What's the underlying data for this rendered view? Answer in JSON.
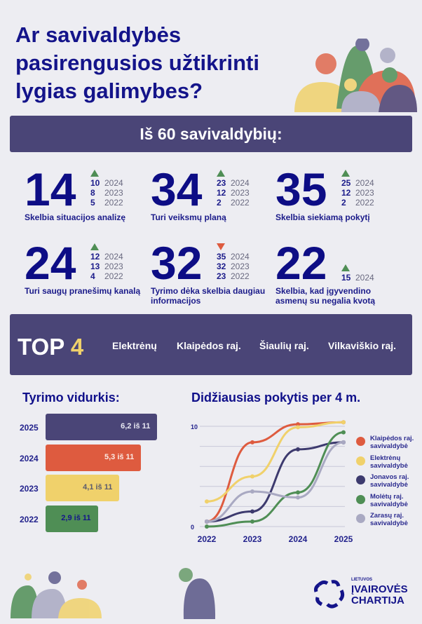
{
  "title": [
    "Ar savivaldybės",
    "pasirengusios užtikrinti",
    "lygias galimybes?"
  ],
  "banner": "Iš 60 savivaldybių:",
  "stats": [
    {
      "value": "14",
      "trend": "up",
      "label": "Skelbia situacijos analizę",
      "history": [
        {
          "v": "10",
          "y": "2024"
        },
        {
          "v": "8",
          "y": "2023"
        },
        {
          "v": "5",
          "y": "2022"
        }
      ]
    },
    {
      "value": "34",
      "trend": "up",
      "label": "Turi veiksmų planą",
      "history": [
        {
          "v": "23",
          "y": "2024"
        },
        {
          "v": "12",
          "y": "2023"
        },
        {
          "v": "2",
          "y": "2022"
        }
      ]
    },
    {
      "value": "35",
      "trend": "up",
      "label": "Skelbia siekiamą pokytį",
      "history": [
        {
          "v": "25",
          "y": "2024"
        },
        {
          "v": "12",
          "y": "2023"
        },
        {
          "v": "2",
          "y": "2022"
        }
      ]
    },
    {
      "value": "24",
      "trend": "up",
      "label": "Turi saugų pranešimų kanalą",
      "history": [
        {
          "v": "12",
          "y": "2024"
        },
        {
          "v": "13",
          "y": "2023"
        },
        {
          "v": "4",
          "y": "2022"
        }
      ]
    },
    {
      "value": "32",
      "trend": "down",
      "label": "Tyrimo dėka skelbia daugiau informacijos",
      "history": [
        {
          "v": "35",
          "y": "2024"
        },
        {
          "v": "32",
          "y": "2023"
        },
        {
          "v": "23",
          "y": "2022"
        }
      ]
    },
    {
      "value": "22",
      "trend": "up",
      "label": "Skelbia, kad įgyvendino asmenų su negalia kvotą",
      "history": [
        {
          "v": "15",
          "y": "2024"
        }
      ]
    }
  ],
  "top": {
    "label": "TOP",
    "count": "4",
    "cities": [
      "Elektrėnų",
      "Klaipėdos raj.",
      "Šiaulių raj.",
      "Vilkaviškio raj."
    ]
  },
  "colors": {
    "navy": "#14148a",
    "banner": "#4a4577",
    "red": "#de5b3f",
    "yellow": "#f0d16b",
    "green": "#4f8e55",
    "grey": "#a9a9c2"
  },
  "chart_data": [
    {
      "type": "bar",
      "title": "Tyrimo vidurkis:",
      "orientation": "horizontal",
      "categories": [
        "2025",
        "2024",
        "2023",
        "2022"
      ],
      "values": [
        6.2,
        5.3,
        4.1,
        2.9
      ],
      "data_labels": [
        "6,2 iš 11",
        "5,3 iš 11",
        "4,1 iš 11",
        "2,9 iš 11"
      ],
      "colors": [
        "#4a4577",
        "#de5b3f",
        "#f0d16b",
        "#4f8e55"
      ],
      "xlim": [
        0,
        11
      ]
    },
    {
      "type": "line",
      "title": "Didžiausias pokytis per 4 m.",
      "x": [
        "2022",
        "2023",
        "2024",
        "2025"
      ],
      "ylim": [
        0,
        10
      ],
      "yticks": [
        "0",
        "10"
      ],
      "grid": true,
      "legend": "right",
      "series": [
        {
          "name": "Klaipėdos raj. savivaldybė",
          "color": "#de5b3f",
          "values": [
            0.5,
            8.4,
            10.2,
            10.4
          ]
        },
        {
          "name": "Elektrėnų savivaldybė",
          "color": "#f0d16b",
          "values": [
            2.5,
            5.0,
            9.9,
            10.4
          ]
        },
        {
          "name": "Jonavos raj. savivaldybė",
          "color": "#3d3a6e",
          "values": [
            0.5,
            1.5,
            7.7,
            8.4
          ]
        },
        {
          "name": "Molėtų raj. savivaldybė",
          "color": "#4f8e55",
          "values": [
            0,
            0.5,
            3.4,
            9.4
          ]
        },
        {
          "name": "Zarasų raj. savivaldybė",
          "color": "#a9a9c2",
          "values": [
            0.5,
            3.5,
            2.9,
            8.4
          ]
        }
      ]
    }
  ],
  "logo": {
    "line1": "LIETUVOS",
    "line2": "ĮVAIROVĖS",
    "line3": "CHARTIJA"
  }
}
